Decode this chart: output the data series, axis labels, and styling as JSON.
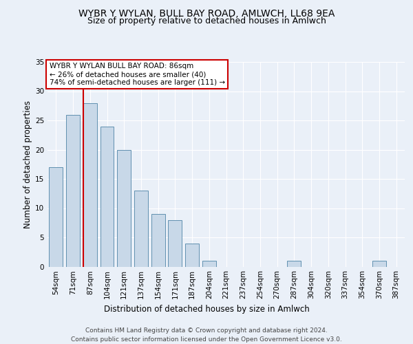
{
  "title_line1": "WYBR Y WYLAN, BULL BAY ROAD, AMLWCH, LL68 9EA",
  "title_line2": "Size of property relative to detached houses in Amlwch",
  "xlabel": "Distribution of detached houses by size in Amlwch",
  "ylabel": "Number of detached properties",
  "categories": [
    "54sqm",
    "71sqm",
    "87sqm",
    "104sqm",
    "121sqm",
    "137sqm",
    "154sqm",
    "171sqm",
    "187sqm",
    "204sqm",
    "221sqm",
    "237sqm",
    "254sqm",
    "270sqm",
    "287sqm",
    "304sqm",
    "320sqm",
    "337sqm",
    "354sqm",
    "370sqm",
    "387sqm"
  ],
  "values": [
    17,
    26,
    28,
    24,
    20,
    13,
    9,
    8,
    4,
    1,
    0,
    0,
    0,
    0,
    1,
    0,
    0,
    0,
    0,
    1,
    0
  ],
  "bar_color": "#c8d8e8",
  "bar_edge_color": "#6090b0",
  "highlight_index": 2,
  "highlight_line_color": "#cc0000",
  "annotation_text": "WYBR Y WYLAN BULL BAY ROAD: 86sqm\n← 26% of detached houses are smaller (40)\n74% of semi-detached houses are larger (111) →",
  "annotation_box_edge": "#cc0000",
  "ylim": [
    0,
    35
  ],
  "yticks": [
    0,
    5,
    10,
    15,
    20,
    25,
    30,
    35
  ],
  "footer_line1": "Contains HM Land Registry data © Crown copyright and database right 2024.",
  "footer_line2": "Contains public sector information licensed under the Open Government Licence v3.0.",
  "background_color": "#eaf0f8",
  "plot_bg_color": "#eaf0f8",
  "grid_color": "#ffffff",
  "title_fontsize": 10,
  "subtitle_fontsize": 9,
  "axis_label_fontsize": 8.5,
  "tick_fontsize": 7.5,
  "annotation_fontsize": 7.5,
  "footer_fontsize": 6.5
}
